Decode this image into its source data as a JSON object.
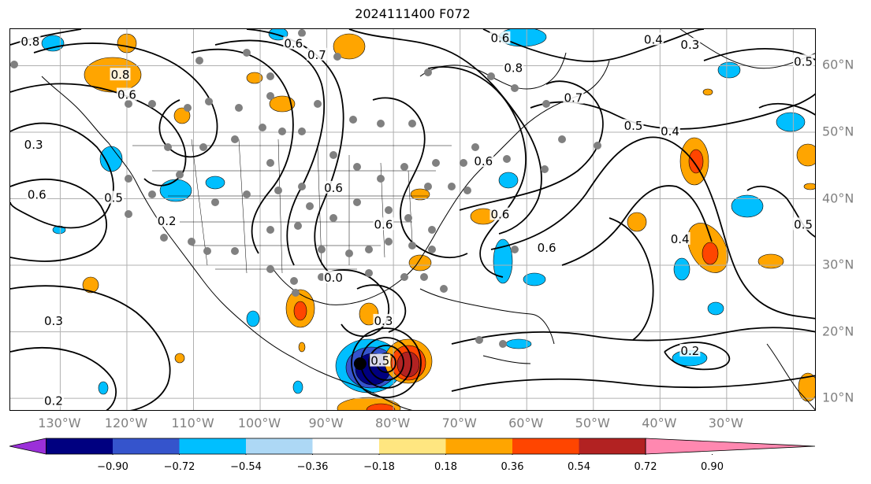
{
  "title": "2024111400 F072",
  "map": {
    "extent": {
      "lon_min": -137.5,
      "lon_max": -16.5,
      "lat_min": 8,
      "lat_max": 65.5
    },
    "grid_lons": [
      -130,
      -120,
      -110,
      -100,
      -90,
      -80,
      -70,
      -60,
      -50,
      -40,
      -30,
      -20
    ],
    "grid_lats": [
      10,
      20,
      30,
      40,
      50,
      60
    ],
    "lon_labels": [
      "130°W",
      "120°W",
      "110°W",
      "100°W",
      "90°W",
      "80°W",
      "70°W",
      "60°W",
      "50°W",
      "40°W",
      "30°W"
    ],
    "lat_labels": [
      "10°N",
      "20°N",
      "30°N",
      "40°N",
      "50°N",
      "60°N"
    ],
    "grid_color": "#b0b0b0",
    "label_color": "#808080",
    "storm_center": {
      "lon": -85,
      "lat": 15.2
    },
    "contour_labels": [
      {
        "text": "0.8",
        "lon": -134.5,
        "lat": 63.5
      },
      {
        "text": "0.6",
        "lon": -95,
        "lat": 63.2
      },
      {
        "text": "0.7",
        "lon": -91.5,
        "lat": 61.5
      },
      {
        "text": "0.6",
        "lon": -64,
        "lat": 64
      },
      {
        "text": "0.8",
        "lon": -62,
        "lat": 59.5
      },
      {
        "text": "0.4",
        "lon": -41,
        "lat": 63.8
      },
      {
        "text": "0.3",
        "lon": -35.5,
        "lat": 63
      },
      {
        "text": "0.5",
        "lon": -18.5,
        "lat": 60.5
      },
      {
        "text": "0.8",
        "lon": -121,
        "lat": 58.5
      },
      {
        "text": "0.6",
        "lon": -120,
        "lat": 55.5
      },
      {
        "text": "0.7",
        "lon": -53,
        "lat": 55
      },
      {
        "text": "0.5",
        "lon": -44,
        "lat": 50.8
      },
      {
        "text": "0.4",
        "lon": -38.5,
        "lat": 50
      },
      {
        "text": "0.3",
        "lon": -134,
        "lat": 48
      },
      {
        "text": "0.6",
        "lon": -66.5,
        "lat": 45.5
      },
      {
        "text": "0.5",
        "lon": -122,
        "lat": 40
      },
      {
        "text": "0.6",
        "lon": -133.5,
        "lat": 40.5
      },
      {
        "text": "0.6",
        "lon": -89,
        "lat": 41.5
      },
      {
        "text": "0.6",
        "lon": -64,
        "lat": 37.5
      },
      {
        "text": "0.6",
        "lon": -81.5,
        "lat": 36
      },
      {
        "text": "0.2",
        "lon": -114,
        "lat": 36.5
      },
      {
        "text": "0.6",
        "lon": -57,
        "lat": 32.5
      },
      {
        "text": "0.4",
        "lon": -37,
        "lat": 33.8
      },
      {
        "text": "0.5",
        "lon": -18.5,
        "lat": 36
      },
      {
        "text": "0.0",
        "lon": -89,
        "lat": 28
      },
      {
        "text": "0.3",
        "lon": -131,
        "lat": 21.5
      },
      {
        "text": "0.3",
        "lon": -81.5,
        "lat": 21.5
      },
      {
        "text": "0.2",
        "lon": -35.5,
        "lat": 17
      },
      {
        "text": "0.5",
        "lon": -82,
        "lat": 15.5
      },
      {
        "text": "0.2",
        "lon": -131,
        "lat": 9.5
      }
    ]
  },
  "colorbar": {
    "ticks": [
      "−0.90",
      "−0.72",
      "−0.54",
      "−0.36",
      "−0.18",
      "0.18",
      "0.36",
      "0.54",
      "0.72",
      "0.90"
    ],
    "colors": [
      "#9b30d9",
      "#000080",
      "#3554cc",
      "#00bfff",
      "#add8f5",
      "#ffffff",
      "#ffe680",
      "#ffa500",
      "#ff4500",
      "#b22222",
      "#ff88b0"
    ]
  }
}
